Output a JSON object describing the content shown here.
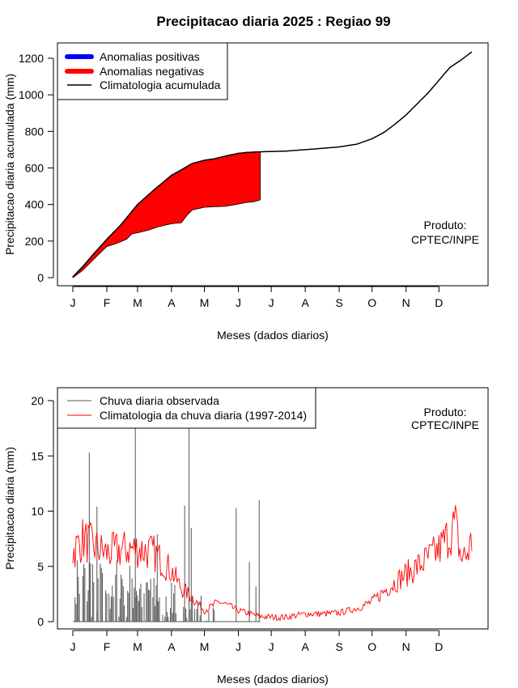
{
  "title": "Precipitacao diaria 2025 : Regiao 99",
  "credit": {
    "line1": "Produto:",
    "line2": "CPTEC/INPE"
  },
  "chart_data": [
    {
      "type": "area",
      "name": "accumulated",
      "ylabel": "Precipitacao diaria acumulada (mm)",
      "xlabel": "Meses (dados diarios)",
      "ylim": [
        0,
        1300
      ],
      "yticks": [
        0,
        200,
        400,
        600,
        800,
        1000,
        1200
      ],
      "x_unit": "day of year",
      "month_ticks": [
        {
          "label": "J",
          "day": 1
        },
        {
          "label": "F",
          "day": 32
        },
        {
          "label": "M",
          "day": 60
        },
        {
          "label": "A",
          "day": 91
        },
        {
          "label": "M",
          "day": 121
        },
        {
          "label": "J",
          "day": 152
        },
        {
          "label": "J",
          "day": 182
        },
        {
          "label": "A",
          "day": 213
        },
        {
          "label": "S",
          "day": 244
        },
        {
          "label": "O",
          "day": 274
        },
        {
          "label": "N",
          "day": 305
        },
        {
          "label": "D",
          "day": 335
        }
      ],
      "legend": [
        {
          "label": "Anomalias positivas",
          "color": "#0000ff",
          "style": "thick"
        },
        {
          "label": "Anomalias negativas",
          "color": "#ff0000",
          "style": "thick"
        },
        {
          "label": "Climatologia acumulada",
          "color": "#000000",
          "style": "line"
        }
      ],
      "legend_position": "top-left",
      "climatology_cumulative": {
        "day": [
          1,
          10,
          20,
          32,
          45,
          60,
          75,
          91,
          100,
          110,
          121,
          130,
          140,
          152,
          160,
          170,
          182,
          195,
          213,
          230,
          244,
          260,
          274,
          285,
          295,
          305,
          315,
          325,
          335,
          345,
          355,
          365
        ],
        "mm": [
          5,
          60,
          130,
          210,
          290,
          400,
          480,
          560,
          590,
          625,
          642,
          650,
          665,
          680,
          685,
          688,
          690,
          692,
          700,
          708,
          715,
          730,
          760,
          795,
          840,
          890,
          950,
          1010,
          1080,
          1150,
          1190,
          1235
        ]
      },
      "observed_cumulative": {
        "day": [
          1,
          10,
          20,
          25,
          32,
          40,
          50,
          55,
          60,
          70,
          80,
          91,
          100,
          105,
          110,
          121,
          130,
          140,
          150,
          158,
          166,
          172
        ],
        "mm": [
          0,
          40,
          100,
          130,
          170,
          185,
          210,
          240,
          245,
          260,
          280,
          295,
          300,
          340,
          370,
          385,
          388,
          390,
          400,
          410,
          415,
          425
        ]
      },
      "observed_last_day": 172
    },
    {
      "type": "bar",
      "name": "daily",
      "ylabel": "Precipitacao diaria (mm)",
      "xlabel": "Meses (dados diarios)",
      "ylim": [
        0,
        21
      ],
      "yticks": [
        0,
        5,
        10,
        15,
        20
      ],
      "x_unit": "day of year",
      "legend": [
        {
          "label": "Chuva diaria observada",
          "color": "#555555"
        },
        {
          "label": "Climatologia da chuva diaria (1997-2014)",
          "color": "#ff0000"
        }
      ],
      "legend_position": "top-left",
      "observed_spikes": [
        {
          "day": 16,
          "mm": 15.3
        },
        {
          "day": 23,
          "mm": 10.4
        },
        {
          "day": 58,
          "mm": 17.5
        },
        {
          "day": 78,
          "mm": 7.9
        },
        {
          "day": 103,
          "mm": 10.5
        },
        {
          "day": 107,
          "mm": 17.5
        },
        {
          "day": 109,
          "mm": 8.5
        },
        {
          "day": 150,
          "mm": 10.3
        },
        {
          "day": 162,
          "mm": 5.4
        },
        {
          "day": 171,
          "mm": 11.0
        },
        {
          "day": 168,
          "mm": 3.2
        }
      ],
      "observed_daily_pattern": {
        "days": [
          1,
          130
        ],
        "max_mm": 8,
        "description_level": [
          5,
          4,
          3,
          2,
          1
        ]
      },
      "climatology_daily": {
        "day": [
          1,
          10,
          20,
          32,
          45,
          60,
          75,
          91,
          100,
          110,
          121,
          135,
          152,
          170,
          182,
          195,
          213,
          230,
          244,
          260,
          274,
          290,
          305,
          320,
          335,
          345,
          350,
          355,
          360,
          365
        ],
        "mm": [
          6.3,
          7.5,
          6.8,
          6.2,
          6.5,
          6.6,
          6.2,
          4.6,
          3.0,
          2.2,
          1.0,
          1.8,
          1.0,
          0.5,
          0.4,
          0.4,
          0.7,
          0.7,
          0.8,
          1.2,
          1.8,
          3.2,
          4.3,
          5.3,
          6.5,
          8.0,
          8.8,
          5.8,
          6.0,
          7.2
        ]
      }
    }
  ]
}
